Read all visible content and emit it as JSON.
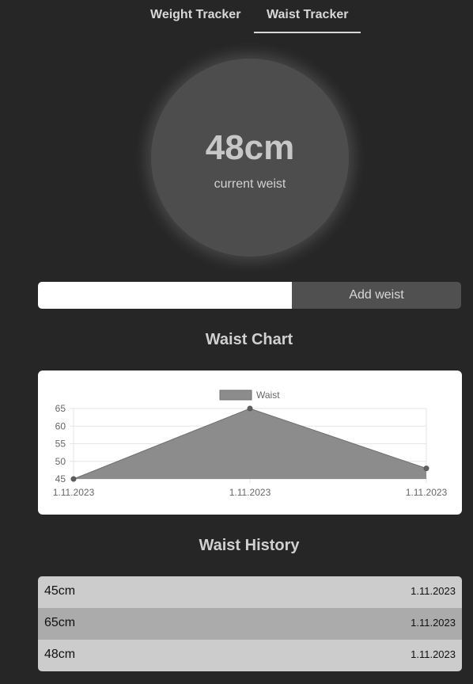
{
  "tabs": [
    {
      "label": "Weight Tracker",
      "active": false
    },
    {
      "label": "Waist Tracker",
      "active": true
    }
  ],
  "current": {
    "value": "48cm",
    "label": "current weist"
  },
  "entry": {
    "value": "",
    "button_label": "Add weist"
  },
  "chart_section": {
    "title": "Waist Chart"
  },
  "chart_data": {
    "type": "area",
    "categories": [
      "1.11.2023",
      "1.11.2023",
      "1.11.2023"
    ],
    "series": [
      {
        "name": "Waist",
        "values": [
          45,
          65,
          48
        ]
      }
    ],
    "ylim": [
      45,
      65
    ],
    "yticks": [
      65,
      60,
      55,
      50,
      45
    ],
    "grid": true,
    "legend": "top",
    "colors": {
      "fill": "#8c8c8c",
      "line": "#6e6e6e",
      "point": "#5f5f5f",
      "grid": "#e6e6e6"
    }
  },
  "history_section": {
    "title": "Waist History"
  },
  "history": [
    {
      "value": "45cm",
      "date": "1.11.2023"
    },
    {
      "value": "65cm",
      "date": "1.11.2023"
    },
    {
      "value": "48cm",
      "date": "1.11.2023"
    }
  ]
}
